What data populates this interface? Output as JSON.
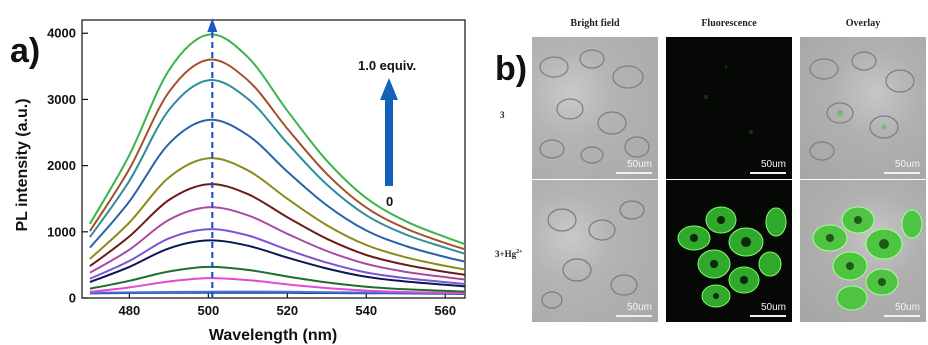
{
  "chart_data": {
    "type": "line",
    "panel_label": "a)",
    "xlabel": "Wavelength (nm)",
    "ylabel": "PL intensity (a.u.)",
    "xlim": [
      468,
      565
    ],
    "ylim": [
      0,
      4200
    ],
    "xticks": [
      480,
      500,
      520,
      540,
      560
    ],
    "yticks": [
      0,
      1000,
      2000,
      3000,
      4000
    ],
    "peak_x": 501,
    "series_width": 18,
    "x": [
      470,
      480,
      490,
      500,
      510,
      520,
      530,
      540,
      550,
      560,
      565
    ],
    "series": [
      {
        "color": "#1e3e9a",
        "values": [
          70,
          75,
          78,
          80,
          80,
          78,
          75,
          72,
          70,
          65,
          60
        ]
      },
      {
        "color": "#4a72d6",
        "values": [
          80,
          85,
          90,
          95,
          96,
          93,
          88,
          82,
          78,
          72,
          68
        ]
      },
      {
        "color": "#e24ad0",
        "values": [
          95,
          160,
          250,
          300,
          270,
          205,
          150,
          112,
          90,
          78,
          72
        ]
      },
      {
        "color": "#1d6e2f",
        "values": [
          140,
          260,
          400,
          470,
          425,
          325,
          235,
          170,
          132,
          108,
          96
        ]
      },
      {
        "color": "#0b1750",
        "values": [
          240,
          470,
          750,
          870,
          790,
          610,
          445,
          320,
          250,
          200,
          175
        ]
      },
      {
        "color": "#7d53d8",
        "values": [
          290,
          560,
          900,
          1040,
          945,
          730,
          535,
          385,
          300,
          240,
          212
        ]
      },
      {
        "color": "#a84aa6",
        "values": [
          380,
          730,
          1180,
          1370,
          1250,
          970,
          710,
          515,
          395,
          315,
          280
        ]
      },
      {
        "color": "#6e1b1b",
        "values": [
          480,
          930,
          1480,
          1720,
          1570,
          1220,
          895,
          650,
          500,
          395,
          350
        ]
      },
      {
        "color": "#8a8a1a",
        "values": [
          590,
          1140,
          1820,
          2110,
          1930,
          1500,
          1100,
          800,
          615,
          485,
          430
        ]
      },
      {
        "color": "#2a64a8",
        "values": [
          760,
          1460,
          2330,
          2690,
          2460,
          1910,
          1400,
          1020,
          785,
          620,
          550
        ]
      },
      {
        "color": "#2e8d9e",
        "values": [
          920,
          1770,
          2840,
          3290,
          3010,
          2340,
          1715,
          1250,
          960,
          760,
          670
        ]
      },
      {
        "color": "#a5502c",
        "values": [
          1010,
          1950,
          3110,
          3600,
          3290,
          2560,
          1875,
          1365,
          1050,
          830,
          735
        ]
      },
      {
        "color": "#39b54a",
        "values": [
          1120,
          2160,
          3440,
          3980,
          3640,
          2830,
          2075,
          1510,
          1160,
          920,
          815
        ]
      }
    ],
    "annotations": {
      "top": "1.0 equiv.",
      "bottom": "0"
    }
  },
  "panel_b": {
    "label": "b)",
    "columns": [
      "Bright field",
      "Fluorescence",
      "Overlay"
    ],
    "rows": [
      "3",
      "3+Hg2+"
    ],
    "scale": "50um"
  }
}
